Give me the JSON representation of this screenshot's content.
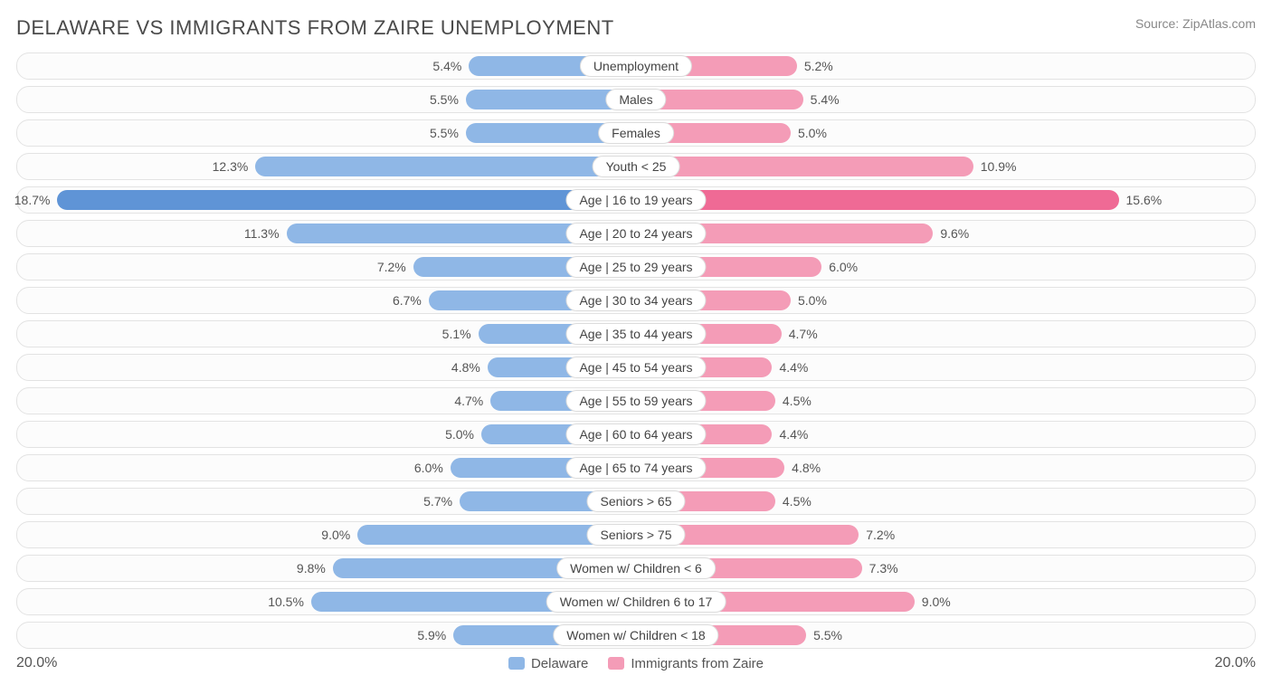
{
  "title": "DELAWARE VS IMMIGRANTS FROM ZAIRE UNEMPLOYMENT",
  "source": "Source: ZipAtlas.com",
  "axis_max_pct": 20.0,
  "axis_label_left": "20.0%",
  "axis_label_right": "20.0%",
  "left_series": {
    "name": "Delaware",
    "bar_color": "#8fb7e6",
    "bar_color_strong": "#5f94d6",
    "swatch_color": "#8fb7e6"
  },
  "right_series": {
    "name": "Immigrants from Zaire",
    "bar_color": "#f49cb7",
    "bar_color_strong": "#ef6a95",
    "swatch_color": "#f49cb7"
  },
  "row_border_color": "#e3e3e3",
  "row_bg": "#fcfcfc",
  "label_color": "#555",
  "cat_border": "#dcdcdc",
  "rows": [
    {
      "category": "Unemployment",
      "left_val": 5.4,
      "left_label": "5.4%",
      "right_val": 5.2,
      "right_label": "5.2%",
      "emph": false
    },
    {
      "category": "Males",
      "left_val": 5.5,
      "left_label": "5.5%",
      "right_val": 5.4,
      "right_label": "5.4%",
      "emph": false
    },
    {
      "category": "Females",
      "left_val": 5.5,
      "left_label": "5.5%",
      "right_val": 5.0,
      "right_label": "5.0%",
      "emph": false
    },
    {
      "category": "Youth < 25",
      "left_val": 12.3,
      "left_label": "12.3%",
      "right_val": 10.9,
      "right_label": "10.9%",
      "emph": false
    },
    {
      "category": "Age | 16 to 19 years",
      "left_val": 18.7,
      "left_label": "18.7%",
      "right_val": 15.6,
      "right_label": "15.6%",
      "emph": true
    },
    {
      "category": "Age | 20 to 24 years",
      "left_val": 11.3,
      "left_label": "11.3%",
      "right_val": 9.6,
      "right_label": "9.6%",
      "emph": false
    },
    {
      "category": "Age | 25 to 29 years",
      "left_val": 7.2,
      "left_label": "7.2%",
      "right_val": 6.0,
      "right_label": "6.0%",
      "emph": false
    },
    {
      "category": "Age | 30 to 34 years",
      "left_val": 6.7,
      "left_label": "6.7%",
      "right_val": 5.0,
      "right_label": "5.0%",
      "emph": false
    },
    {
      "category": "Age | 35 to 44 years",
      "left_val": 5.1,
      "left_label": "5.1%",
      "right_val": 4.7,
      "right_label": "4.7%",
      "emph": false
    },
    {
      "category": "Age | 45 to 54 years",
      "left_val": 4.8,
      "left_label": "4.8%",
      "right_val": 4.4,
      "right_label": "4.4%",
      "emph": false
    },
    {
      "category": "Age | 55 to 59 years",
      "left_val": 4.7,
      "left_label": "4.7%",
      "right_val": 4.5,
      "right_label": "4.5%",
      "emph": false
    },
    {
      "category": "Age | 60 to 64 years",
      "left_val": 5.0,
      "left_label": "5.0%",
      "right_val": 4.4,
      "right_label": "4.4%",
      "emph": false
    },
    {
      "category": "Age | 65 to 74 years",
      "left_val": 6.0,
      "left_label": "6.0%",
      "right_val": 4.8,
      "right_label": "4.8%",
      "emph": false
    },
    {
      "category": "Seniors > 65",
      "left_val": 5.7,
      "left_label": "5.7%",
      "right_val": 4.5,
      "right_label": "4.5%",
      "emph": false
    },
    {
      "category": "Seniors > 75",
      "left_val": 9.0,
      "left_label": "9.0%",
      "right_val": 7.2,
      "right_label": "7.2%",
      "emph": false
    },
    {
      "category": "Women w/ Children < 6",
      "left_val": 9.8,
      "left_label": "9.8%",
      "right_val": 7.3,
      "right_label": "7.3%",
      "emph": false
    },
    {
      "category": "Women w/ Children 6 to 17",
      "left_val": 10.5,
      "left_label": "10.5%",
      "right_val": 9.0,
      "right_label": "9.0%",
      "emph": false
    },
    {
      "category": "Women w/ Children < 18",
      "left_val": 5.9,
      "left_label": "5.9%",
      "right_val": 5.5,
      "right_label": "5.5%",
      "emph": false
    }
  ]
}
